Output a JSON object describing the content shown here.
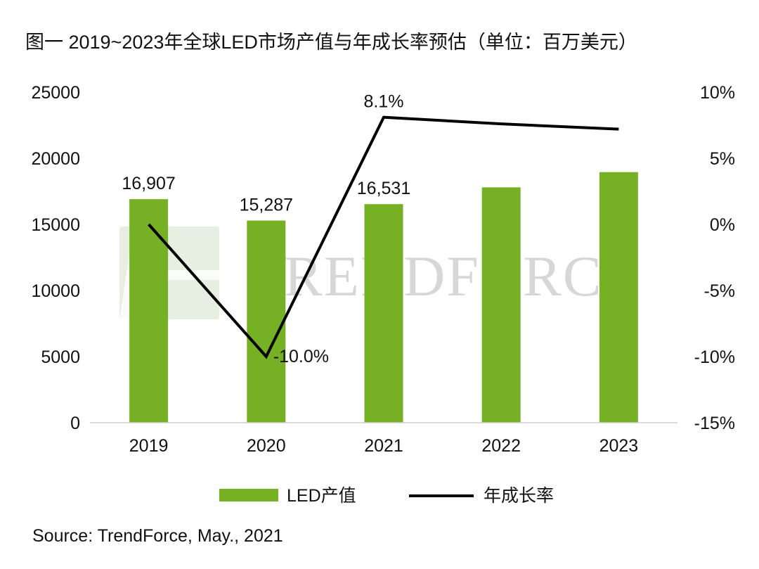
{
  "title": "图一  2019~2023年全球LED市场产值与年成长率预估（单位：百万美元）",
  "source": "Source: TrendForce, May., 2021",
  "watermark": "TRENDFORCE",
  "chart_data": {
    "type": "bar",
    "categories": [
      "2019",
      "2020",
      "2021",
      "2022",
      "2023"
    ],
    "series": [
      {
        "name": "LED产值",
        "type": "bar",
        "axis": "left",
        "color": "#76b024",
        "values": [
          16907,
          15287,
          16531,
          17800,
          18950
        ],
        "data_labels": [
          "16,907",
          "15,287",
          "16,531",
          "",
          ""
        ]
      },
      {
        "name": "年成长率",
        "type": "line",
        "axis": "right",
        "color": "#000000",
        "values": [
          0.0,
          -10.0,
          8.1,
          7.6,
          7.2
        ],
        "data_labels": [
          "",
          "-10.0%",
          "8.1%",
          "",
          ""
        ]
      }
    ],
    "y_left": {
      "min": 0,
      "max": 25000,
      "ticks": [
        "0",
        "5000",
        "10000",
        "15000",
        "20000",
        "25000"
      ]
    },
    "y_right": {
      "min": -15,
      "max": 10,
      "ticks": [
        "-15%",
        "-10%",
        "-5%",
        "0%",
        "5%",
        "10%"
      ]
    },
    "grid": false,
    "legend": "bottom-center"
  }
}
